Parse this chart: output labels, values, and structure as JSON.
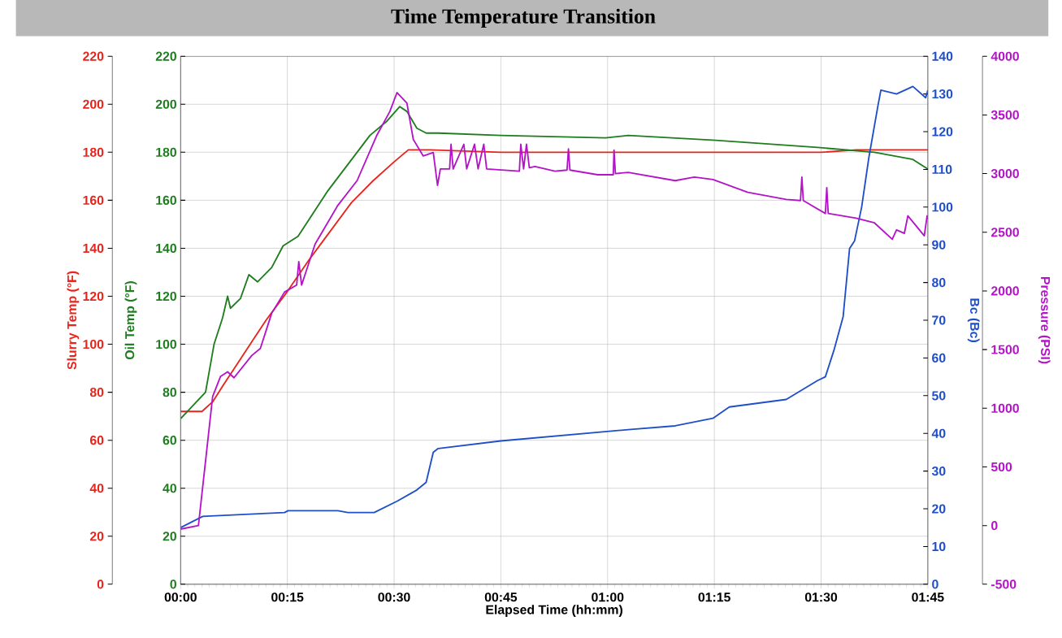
{
  "chart_data": {
    "type": "line",
    "title": "Time Temperature Transition",
    "xlabel": "Elapsed Time (hh:mm)",
    "ylabel": "Slurry Temp (°F)",
    "y2label": "Bc (Bc)",
    "y3label": "Pressure (PSI)",
    "annotations": [
      "Oil Temp (°F)",
      "0",
      "20",
      "40",
      "60",
      "80",
      "100",
      "120",
      "140",
      "160",
      "180",
      "200",
      "220"
    ],
    "xlim": [
      0,
      1.75
    ],
    "xticks": [
      {
        "value": 0,
        "label": "00:00"
      },
      {
        "value": 0.25,
        "label": "00:15"
      },
      {
        "value": 0.5,
        "label": "00:30"
      },
      {
        "value": 0.75,
        "label": "00:45"
      },
      {
        "value": 1,
        "label": "01:00"
      },
      {
        "value": 1.25,
        "label": "01:15"
      },
      {
        "value": 1.5,
        "label": "01:30"
      },
      {
        "value": 1.75,
        "label": "01:45"
      }
    ],
    "ylim": [
      0,
      220
    ],
    "yticks": [
      0,
      20,
      40,
      60,
      80,
      100,
      120,
      140,
      160,
      180,
      200,
      220
    ],
    "y2lim": [
      0,
      140
    ],
    "y2ticks": [
      0,
      10,
      20,
      30,
      40,
      50,
      60,
      70,
      80,
      90,
      100,
      110,
      120,
      130,
      140
    ],
    "y3lim": [
      -500,
      4000
    ],
    "y3ticks": [
      -500,
      0,
      500,
      1000,
      1500,
      2000,
      2500,
      3000,
      3500,
      4000
    ],
    "grid": true,
    "series": [
      {
        "color": "#e8241c",
        "x": [
          0,
          0.05,
          0.075,
          0.1,
          0.1333,
          0.1667,
          0.2,
          0.25,
          0.3,
          0.3333,
          0.4,
          0.45,
          0.5,
          0.5333,
          0.5833,
          0.75,
          1,
          1.25,
          1.5,
          1.5833,
          1.75
        ],
        "values": [
          72,
          72,
          76,
          83,
          92,
          101,
          110,
          122,
          135,
          143,
          159,
          168,
          176,
          181,
          181,
          180,
          180,
          180,
          180,
          181,
          181
        ]
      },
      {
        "color": "#1e7d1e",
        "x": [
          0,
          0.0583,
          0.0783,
          0.0983,
          0.11,
          0.1167,
          0.14,
          0.16,
          0.18,
          0.2133,
          0.24,
          0.275,
          0.345,
          0.4433,
          0.4833,
          0.5133,
          0.53,
          0.5533,
          0.575,
          0.6033,
          0.75,
          0.995,
          1.0483,
          1.2533,
          1.4917,
          1.625,
          1.715,
          1.75
        ],
        "values": [
          69,
          80,
          100,
          111,
          120,
          115,
          119,
          129,
          126,
          132,
          141,
          145,
          164,
          187,
          193,
          199,
          197,
          190,
          188,
          188,
          187,
          186,
          187,
          185,
          182,
          180,
          177,
          173
        ]
      },
      {
        "axis": "y2",
        "color": "#1f4fc8",
        "x": [
          0,
          0.0517,
          0.2433,
          0.2517,
          0.3683,
          0.3917,
          0.4533,
          0.5067,
          0.5533,
          0.575,
          0.5917,
          0.6033,
          0.75,
          1.0483,
          1.1583,
          1.2467,
          1.285,
          1.4183,
          1.4917,
          1.51,
          1.53,
          1.5517,
          1.5667,
          1.5783,
          1.595,
          1.6117,
          1.6333,
          1.64,
          1.6767,
          1.715,
          1.745,
          1.75
        ],
        "values": [
          15,
          18,
          19,
          19.5,
          19.5,
          19,
          19,
          22,
          25,
          27,
          35,
          36,
          38,
          41,
          42,
          44,
          47,
          49,
          54,
          55,
          62,
          71,
          89,
          91,
          100,
          113,
          127,
          131,
          130,
          132,
          129,
          131
        ]
      },
      {
        "axis": "y3",
        "color": "#b414c8",
        "x": [
          0,
          0.0417,
          0.075,
          0.0933,
          0.11,
          0.125,
          0.1667,
          0.1867,
          0.2133,
          0.2433,
          0.2717,
          0.2767,
          0.2833,
          0.315,
          0.3683,
          0.4133,
          0.46,
          0.49,
          0.5067,
          0.53,
          0.545,
          0.5683,
          0.5917,
          0.6017,
          0.6083,
          0.63,
          0.6333,
          0.6383,
          0.6633,
          0.67,
          0.6883,
          0.6967,
          0.71,
          0.7167,
          0.7933,
          0.7967,
          0.8033,
          0.81,
          0.8167,
          0.83,
          0.8767,
          0.905,
          0.9083,
          0.9117,
          0.9767,
          1.0133,
          1.015,
          1.0183,
          1.0483,
          1.1583,
          1.2033,
          1.2467,
          1.3283,
          1.4183,
          1.4517,
          1.455,
          1.4583,
          1.51,
          1.5133,
          1.5167,
          1.5817,
          1.625,
          1.6667,
          1.6767,
          1.695,
          1.7033,
          1.7417,
          1.7483,
          1.75
        ],
        "values": [
          -30,
          0,
          1100,
          1270,
          1310,
          1260,
          1450,
          1510,
          1810,
          1990,
          2050,
          2250,
          2050,
          2400,
          2730,
          2940,
          3330,
          3530,
          3690,
          3600,
          3290,
          3150,
          3180,
          2900,
          3040,
          3040,
          3250,
          3040,
          3250,
          3040,
          3250,
          3040,
          3250,
          3040,
          3020,
          3250,
          3040,
          3250,
          3050,
          3060,
          3020,
          3030,
          3210,
          3030,
          2990,
          2990,
          3200,
          3000,
          3010,
          2940,
          2970,
          2950,
          2840,
          2780,
          2770,
          2970,
          2770,
          2660,
          2880,
          2660,
          2620,
          2580,
          2440,
          2520,
          2490,
          2640,
          2470,
          2640,
          2610
        ]
      }
    ]
  }
}
